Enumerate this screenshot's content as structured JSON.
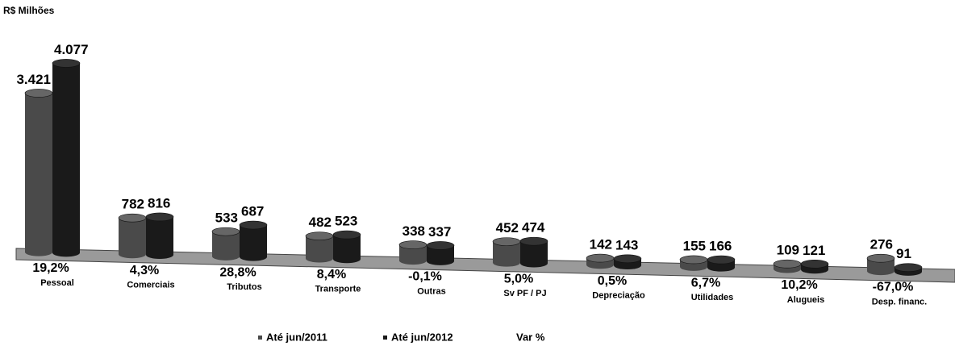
{
  "chart_data": {
    "type": "bar",
    "title": "R$ Milhões",
    "categories": [
      "Pessoal",
      "Comerciais",
      "Tributos",
      "Transporte",
      "Outras",
      "Sv PF / PJ",
      "Depreciação",
      "Utilidades",
      "Alugueis",
      "Desp. financ."
    ],
    "series": [
      {
        "name": "Até jun/2011",
        "color": "#4a4a4a",
        "values": [
          3421,
          782,
          533,
          482,
          338,
          452,
          142,
          155,
          109,
          276
        ],
        "value_labels": [
          "3.421",
          "782",
          "533",
          "482",
          "338",
          "452",
          "142",
          "155",
          "109",
          "276"
        ]
      },
      {
        "name": "Até jun/2012",
        "color": "#1a1a1a",
        "values": [
          4077,
          816,
          687,
          523,
          337,
          474,
          143,
          166,
          121,
          91
        ],
        "value_labels": [
          "4.077",
          "816",
          "687",
          "523",
          "337",
          "474",
          "143",
          "166",
          "121",
          "91"
        ]
      },
      {
        "name": "Var %",
        "values": [
          19.2,
          4.3,
          28.8,
          8.4,
          -0.1,
          5.0,
          0.5,
          6.7,
          10.2,
          -67.0
        ],
        "value_labels": [
          "19,2%",
          "4,3%",
          "28,8%",
          "8,4%",
          "-0,1%",
          "5,0%",
          "0,5%",
          "6,7%",
          "10,2%",
          "-67,0%"
        ]
      }
    ]
  }
}
